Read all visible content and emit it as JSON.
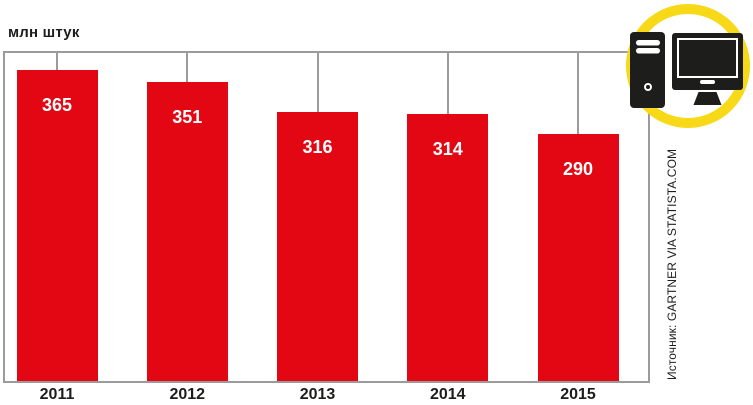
{
  "header": {
    "unit_label": "млн штук"
  },
  "chart_data": {
    "type": "bar",
    "title": "",
    "unit_label": "млн штук",
    "categories": [
      "2011",
      "2012",
      "2013",
      "2014",
      "2015"
    ],
    "values": [
      365,
      351,
      316,
      314,
      290
    ],
    "ylim": [
      0,
      389
    ],
    "grid": false,
    "legend": "none",
    "bar_color": "#e30613",
    "value_label_color": "#ffffff",
    "frame_color": "#9b9b9b"
  },
  "source": {
    "text": "Источник: GARTNER VIA STATISTA.COM"
  },
  "icon": {
    "name": "desktop-computer-icon",
    "ring_color": "#f7d917",
    "glyph_color": "#1d1d1b",
    "disc_color": "#ffffff"
  }
}
